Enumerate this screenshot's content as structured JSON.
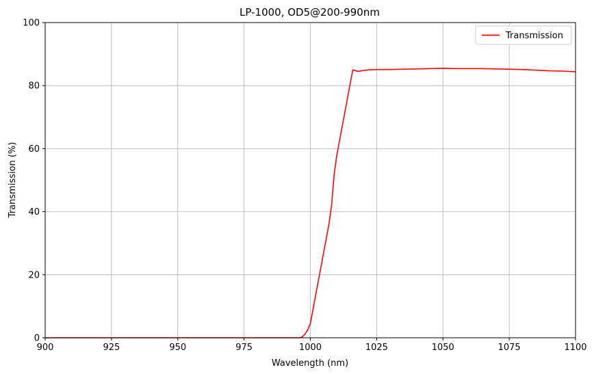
{
  "chart_data": {
    "type": "line",
    "title": "LP-1000, OD5@200-990nm",
    "xlabel": "Wavelength (nm)",
    "ylabel": "Transmission (%)",
    "xlim": [
      900,
      1100
    ],
    "ylim": [
      0,
      100
    ],
    "xticks": [
      900,
      925,
      950,
      975,
      1000,
      1025,
      1050,
      1075,
      1100
    ],
    "yticks": [
      0,
      20,
      40,
      60,
      80,
      100
    ],
    "grid": true,
    "legend_position": "top-right",
    "series": [
      {
        "name": "Transmission",
        "color": "#ff0000",
        "x": [
          900,
          950,
          996,
          997,
          998,
          999,
          1000,
          1001,
          1003,
          1005,
          1007,
          1008,
          1009,
          1010,
          1012,
          1014,
          1016,
          1018,
          1020,
          1022,
          1025,
          1030,
          1035,
          1040,
          1045,
          1050,
          1055,
          1060,
          1065,
          1070,
          1075,
          1080,
          1085,
          1090,
          1095,
          1100
        ],
        "y": [
          0,
          0,
          0,
          0.3,
          1.2,
          2.5,
          4.5,
          9,
          18,
          27,
          36,
          42,
          52,
          58,
          67,
          76,
          85,
          84.5,
          84.8,
          85,
          85.1,
          85.1,
          85.2,
          85.3,
          85.4,
          85.5,
          85.4,
          85.4,
          85.4,
          85.3,
          85.2,
          85.1,
          84.9,
          84.7,
          84.6,
          84.4
        ]
      }
    ]
  }
}
